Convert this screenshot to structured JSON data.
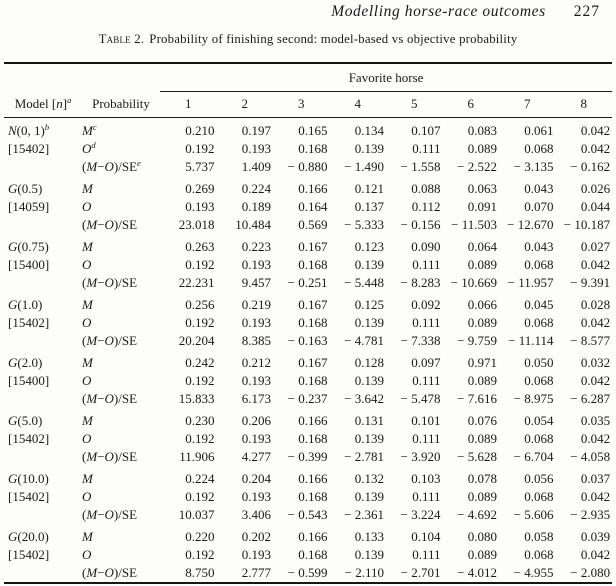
{
  "page": {
    "running_head": "Modelling horse-race outcomes",
    "page_number": "227",
    "caption_label": "Table 2.",
    "caption_text": "Probability of finishing second: model-based vs objective probability"
  },
  "table": {
    "spanner": "Favorite horse",
    "col1": {
      "pre": "Model [",
      "n": "n",
      "post": "]",
      "sup": "a"
    },
    "col2": "Probability",
    "horse_columns": [
      "1",
      "2",
      "3",
      "4",
      "5",
      "6",
      "7",
      "8"
    ],
    "prob_labels": {
      "m": "M",
      "o": "O",
      "se_open": "(",
      "se_m": "M",
      "se_minus": "−",
      "se_o": "O",
      "se_close": ")/SE"
    },
    "blocks": [
      {
        "model_italic": "N",
        "model_rest": "(0, 1)",
        "model_sup": "b",
        "n_count": "[15402]",
        "sup_m": "c",
        "sup_o": "d",
        "sup_se": "e",
        "m": [
          "0.210",
          "0.197",
          "0.165",
          "0.134",
          "0.107",
          "0.083",
          "0.061",
          "0.042"
        ],
        "o": [
          "0.192",
          "0.193",
          "0.168",
          "0.139",
          "0.111",
          "0.089",
          "0.068",
          "0.042"
        ],
        "se": [
          "5.737",
          "1.409",
          "− 0.880",
          "− 1.490",
          "− 1.558",
          "− 2.522",
          "− 3.135",
          "− 0.162"
        ]
      },
      {
        "model_italic": "G",
        "model_rest": "(0.5)",
        "n_count": "[14059]",
        "m": [
          "0.269",
          "0.224",
          "0.166",
          "0.121",
          "0.088",
          "0.063",
          "0.043",
          "0.026"
        ],
        "o": [
          "0.193",
          "0.189",
          "0.164",
          "0.137",
          "0.112",
          "0.091",
          "0.070",
          "0.044"
        ],
        "se": [
          "23.018",
          "10.484",
          "0.569",
          "− 5.333",
          "− 0.156",
          "− 11.503",
          "− 12.670",
          "− 10.187"
        ]
      },
      {
        "model_italic": "G",
        "model_rest": "(0.75)",
        "n_count": "[15400]",
        "m": [
          "0.263",
          "0.223",
          "0.167",
          "0.123",
          "0.090",
          "0.064",
          "0.043",
          "0.027"
        ],
        "o": [
          "0.192",
          "0.193",
          "0.168",
          "0.139",
          "0.111",
          "0.089",
          "0.068",
          "0.042"
        ],
        "se": [
          "22.231",
          "9.457",
          "− 0.251",
          "− 5.448",
          "− 8.283",
          "− 10.669",
          "− 11.957",
          "− 9.391"
        ]
      },
      {
        "model_italic": "G",
        "model_rest": "(1.0)",
        "n_count": "[15402]",
        "m": [
          "0.256",
          "0.219",
          "0.167",
          "0.125",
          "0.092",
          "0.066",
          "0.045",
          "0.028"
        ],
        "o": [
          "0.192",
          "0.193",
          "0.168",
          "0.139",
          "0.111",
          "0.089",
          "0.068",
          "0.042"
        ],
        "se": [
          "20.204",
          "8.385",
          "− 0.163",
          "− 4.781",
          "− 7.338",
          "− 9.759",
          "− 11.114",
          "− 8.577"
        ]
      },
      {
        "model_italic": "G",
        "model_rest": "(2.0)",
        "n_count": "[15400]",
        "m": [
          "0.242",
          "0.212",
          "0.167",
          "0.128",
          "0.097",
          "0.971",
          "0.050",
          "0.032"
        ],
        "o": [
          "0.192",
          "0.193",
          "0.168",
          "0.139",
          "0.111",
          "0.089",
          "0.068",
          "0.042"
        ],
        "se": [
          "15.833",
          "6.173",
          "− 0.237",
          "− 3.642",
          "− 5.478",
          "− 7.616",
          "− 8.975",
          "− 6.287"
        ]
      },
      {
        "model_italic": "G",
        "model_rest": "(5.0)",
        "n_count": "[15402]",
        "m": [
          "0.230",
          "0.206",
          "0.166",
          "0.131",
          "0.101",
          "0.076",
          "0.054",
          "0.035"
        ],
        "o": [
          "0.192",
          "0.193",
          "0.168",
          "0.139",
          "0.111",
          "0.089",
          "0.068",
          "0.042"
        ],
        "se": [
          "11.906",
          "4.277",
          "− 0.399",
          "− 2.781",
          "− 3.920",
          "− 5.628",
          "− 6.704",
          "− 4.058"
        ]
      },
      {
        "model_italic": "G",
        "model_rest": "(10.0)",
        "n_count": "[15402]",
        "m": [
          "0.224",
          "0.204",
          "0.166",
          "0.132",
          "0.103",
          "0.078",
          "0.056",
          "0.037"
        ],
        "o": [
          "0.192",
          "0.193",
          "0.168",
          "0.139",
          "0.111",
          "0.089",
          "0.068",
          "0.042"
        ],
        "se": [
          "10.037",
          "3.406",
          "− 0.543",
          "− 2.361",
          "− 3.224",
          "− 4.692",
          "− 5.606",
          "− 2.935"
        ]
      },
      {
        "model_italic": "G",
        "model_rest": "(20.0)",
        "n_count": "[15402]",
        "m": [
          "0.220",
          "0.202",
          "0.166",
          "0.133",
          "0.104",
          "0.080",
          "0.058",
          "0.039"
        ],
        "o": [
          "0.192",
          "0.193",
          "0.168",
          "0.139",
          "0.111",
          "0.089",
          "0.068",
          "0.042"
        ],
        "se": [
          "8.750",
          "2.777",
          "− 0.599",
          "− 2.110",
          "− 2.701",
          "− 4.012",
          "− 4.955",
          "− 2.080"
        ]
      }
    ]
  }
}
